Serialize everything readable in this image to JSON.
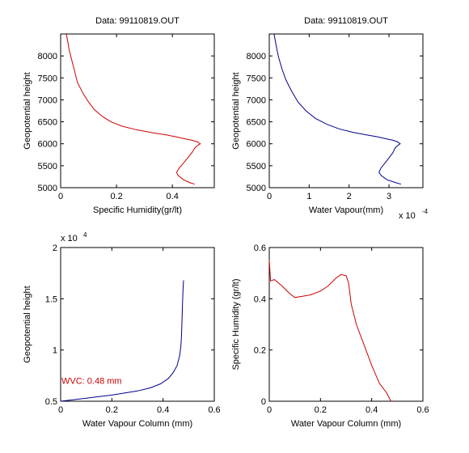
{
  "chart_data": [
    {
      "type": "line",
      "title": "Data: 99110819.OUT",
      "xlabel": "Specific Humidity(gr/lt)",
      "ylabel": "Geopotential height",
      "xlim": [
        0,
        0.55
      ],
      "ylim": [
        5000,
        8500
      ],
      "xticks": [
        0,
        0.2,
        0.4
      ],
      "xtick_labels": [
        "0",
        "0.2",
        "0.4"
      ],
      "yticks": [
        5000,
        5500,
        6000,
        6500,
        7000,
        7500,
        8000
      ],
      "ytick_labels": [
        "5000",
        "5500",
        "6000",
        "6500",
        "7000",
        "7500",
        "8000"
      ],
      "grid": false,
      "series": [
        {
          "color": "#cc0000",
          "x": [
            0.48,
            0.46,
            0.44,
            0.42,
            0.415,
            0.425,
            0.44,
            0.455,
            0.47,
            0.48,
            0.49,
            0.5,
            0.49,
            0.47,
            0.44,
            0.42,
            0.38,
            0.33,
            0.27,
            0.22,
            0.18,
            0.15,
            0.12,
            0.1,
            0.08,
            0.06,
            0.05,
            0.04,
            0.03,
            0.025,
            0.02
          ],
          "y": [
            5080,
            5120,
            5180,
            5280,
            5350,
            5450,
            5560,
            5680,
            5800,
            5900,
            5960,
            6000,
            6040,
            6080,
            6120,
            6150,
            6200,
            6250,
            6320,
            6400,
            6500,
            6620,
            6780,
            6950,
            7150,
            7400,
            7650,
            7900,
            8150,
            8350,
            8500
          ]
        }
      ]
    },
    {
      "type": "line",
      "title": "Data: 99110819.OUT",
      "xlabel": "Water Vapour(mm)",
      "x_scale_label": "x 10",
      "x_scale_exponent": "-4",
      "ylabel": "Geopotential height",
      "xlim": [
        0,
        3.85
      ],
      "ylim": [
        5000,
        8500
      ],
      "xticks": [
        0,
        1,
        2,
        3
      ],
      "xtick_labels": [
        "0",
        "1",
        "2",
        "3"
      ],
      "yticks": [
        5000,
        5500,
        6000,
        6500,
        7000,
        7500,
        8000
      ],
      "ytick_labels": [
        "5000",
        "5500",
        "6000",
        "6500",
        "7000",
        "7500",
        "8000"
      ],
      "grid": false,
      "series": [
        {
          "color": "#00008b",
          "x": [
            3.3,
            3.15,
            2.95,
            2.8,
            2.75,
            2.8,
            2.9,
            3.0,
            3.1,
            3.15,
            3.22,
            3.28,
            3.22,
            3.1,
            2.9,
            2.7,
            2.45,
            2.1,
            1.75,
            1.45,
            1.15,
            0.92,
            0.72,
            0.56,
            0.42,
            0.32,
            0.24,
            0.19,
            0.15,
            0.12
          ],
          "y": [
            5080,
            5120,
            5180,
            5280,
            5350,
            5450,
            5560,
            5680,
            5800,
            5900,
            5960,
            6000,
            6040,
            6080,
            6120,
            6160,
            6200,
            6260,
            6340,
            6440,
            6580,
            6750,
            6950,
            7200,
            7450,
            7700,
            7950,
            8150,
            8350,
            8500
          ]
        }
      ]
    },
    {
      "type": "line",
      "title": "",
      "xlabel": "Water Vapour Column (mm)",
      "ylabel": "Geopotential height",
      "y_scale_label": "x 10",
      "y_scale_exponent": "4",
      "xlim": [
        0,
        0.6
      ],
      "ylim": [
        0.5,
        2
      ],
      "xticks": [
        0,
        0.2,
        0.4,
        0.6
      ],
      "xtick_labels": [
        "0",
        "0.2",
        "0.4",
        "0.6"
      ],
      "yticks": [
        0.5,
        1,
        1.5,
        2
      ],
      "ytick_labels": [
        "0.5",
        "1",
        "1.5",
        "2"
      ],
      "grid": false,
      "annotation": {
        "text": "WVC: 0.48 mm",
        "color": "#cc0000",
        "x": 0.0,
        "y": 0.7
      },
      "series": [
        {
          "color": "#00008b",
          "x": [
            0.0,
            0.1,
            0.2,
            0.3,
            0.35,
            0.39,
            0.42,
            0.44,
            0.455,
            0.465,
            0.47,
            0.472,
            0.474,
            0.476,
            0.478,
            0.48
          ],
          "y": [
            0.5,
            0.53,
            0.56,
            0.6,
            0.63,
            0.67,
            0.72,
            0.78,
            0.85,
            0.95,
            1.05,
            1.15,
            1.3,
            1.45,
            1.6,
            1.68
          ]
        }
      ]
    },
    {
      "type": "line",
      "title": "",
      "xlabel": "Water Vapour Column (mm)",
      "ylabel": "Specific Humidity (gr/lt)",
      "xlim": [
        0,
        0.6
      ],
      "ylim": [
        0,
        0.6
      ],
      "xticks": [
        0,
        0.2,
        0.4,
        0.6
      ],
      "xtick_labels": [
        "0",
        "0.2",
        "0.4",
        "0.6"
      ],
      "yticks": [
        0,
        0.2,
        0.4,
        0.6
      ],
      "ytick_labels": [
        "0",
        "0.2",
        "0.4",
        "0.6"
      ],
      "grid": false,
      "series": [
        {
          "color": "#cc0000",
          "x": [
            0.0,
            0.005,
            0.02,
            0.05,
            0.08,
            0.1,
            0.13,
            0.16,
            0.2,
            0.23,
            0.26,
            0.28,
            0.3,
            0.31,
            0.32,
            0.34,
            0.37,
            0.4,
            0.43,
            0.46,
            0.475
          ],
          "y": [
            0.55,
            0.47,
            0.475,
            0.45,
            0.42,
            0.405,
            0.41,
            0.415,
            0.43,
            0.45,
            0.48,
            0.495,
            0.49,
            0.46,
            0.38,
            0.3,
            0.22,
            0.14,
            0.07,
            0.03,
            0.0
          ]
        }
      ]
    }
  ]
}
